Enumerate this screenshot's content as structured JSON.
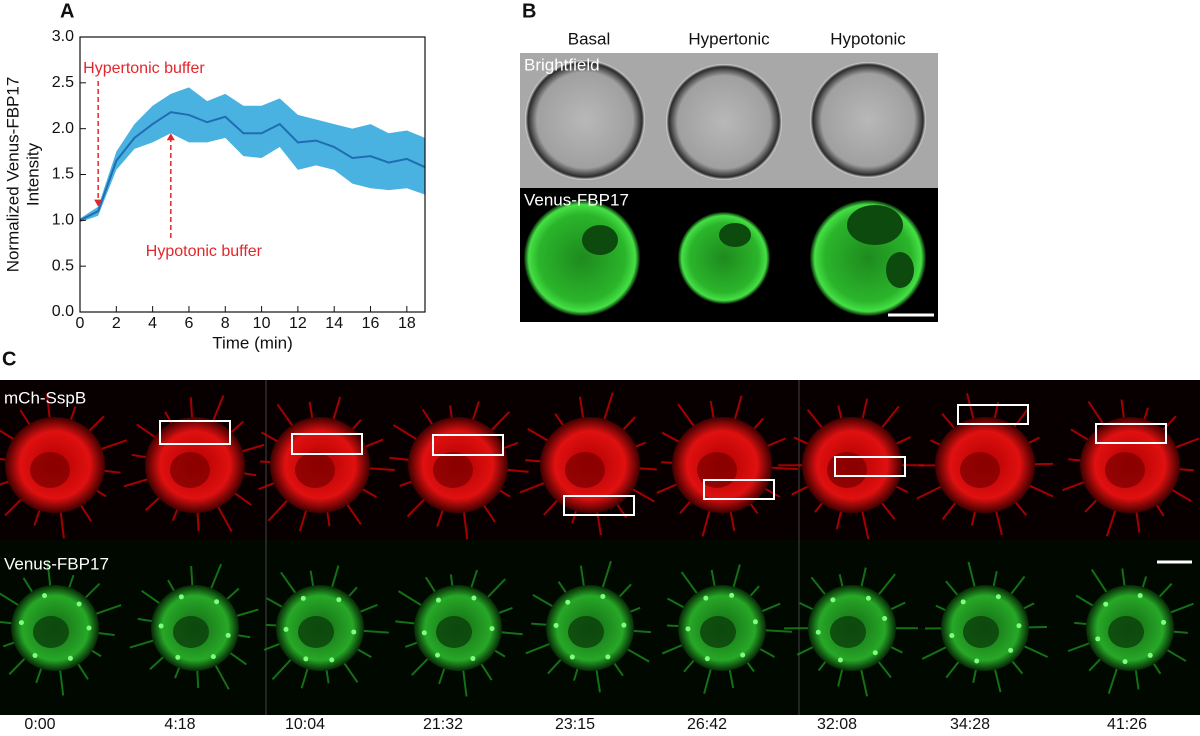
{
  "chart_data": {
    "type": "line",
    "panel": "A",
    "x": [
      0,
      1,
      2,
      3,
      4,
      5,
      6,
      7,
      8,
      9,
      10,
      11,
      12,
      13,
      14,
      15,
      16,
      17,
      18,
      19
    ],
    "series": [
      {
        "color": "#1f6db3",
        "values": [
          1.0,
          1.1,
          1.65,
          1.9,
          2.05,
          2.18,
          2.15,
          2.07,
          2.13,
          1.95,
          1.95,
          2.05,
          1.85,
          1.87,
          1.8,
          1.68,
          1.7,
          1.63,
          1.67,
          1.58
        ]
      }
    ],
    "band": {
      "color": "#49b2e0",
      "upper": [
        1.02,
        1.15,
        1.75,
        2.05,
        2.25,
        2.38,
        2.45,
        2.3,
        2.38,
        2.25,
        2.25,
        2.33,
        2.15,
        2.1,
        2.05,
        2.0,
        2.05,
        1.95,
        1.98,
        1.9
      ],
      "lower": [
        0.98,
        1.05,
        1.55,
        1.78,
        1.85,
        1.95,
        1.85,
        1.85,
        1.9,
        1.7,
        1.68,
        1.8,
        1.55,
        1.6,
        1.55,
        1.4,
        1.35,
        1.33,
        1.35,
        1.28
      ]
    },
    "xlabel": "Time (min)",
    "ylabel": [
      "Normalized Venus-FBP17",
      "Intensity"
    ],
    "xlim": [
      0,
      19
    ],
    "xticks": [
      0,
      2,
      4,
      6,
      8,
      10,
      12,
      14,
      16,
      18
    ],
    "ylim": [
      0,
      3
    ],
    "yticks": [
      {
        "value": 0,
        "label": "0.0"
      },
      {
        "value": 0.5,
        "label": "0.5"
      },
      {
        "value": 1,
        "label": "1.0"
      },
      {
        "value": 1.5,
        "label": "1.5"
      },
      {
        "value": 2,
        "label": "2.0"
      },
      {
        "value": 2.5,
        "label": "2.5"
      },
      {
        "value": 3,
        "label": "3.0"
      }
    ],
    "annotations": [
      {
        "text": "Hypertonic buffer",
        "x": 1,
        "side": "above",
        "color": "#e3262c"
      },
      {
        "text": "Hypotonic buffer",
        "x": 5,
        "side": "below",
        "color": "#e3262c"
      }
    ]
  },
  "panel_b": {
    "label": "B",
    "columns": [
      "Basal",
      "Hypertonic",
      "Hypotonic"
    ],
    "rows": [
      "Brightfield",
      "Venus-FBP17"
    ]
  },
  "panel_c": {
    "label": "C",
    "rows": [
      "mCh-SspB",
      "Venus-FBP17"
    ],
    "times": [
      "0:00",
      "4:18",
      "10:04",
      "21:32",
      "23:15",
      "26:42",
      "32:08",
      "34:28",
      "41:26"
    ]
  }
}
